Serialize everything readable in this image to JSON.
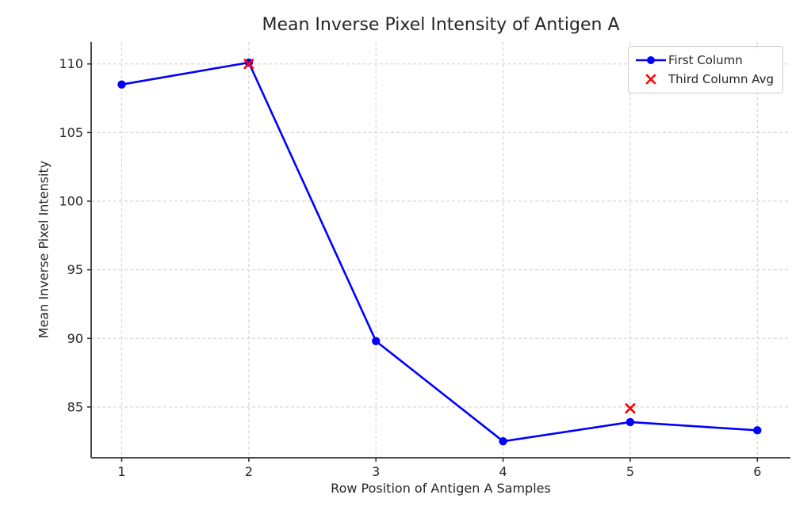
{
  "chart_data": {
    "type": "line",
    "title": "Mean Inverse Pixel Intensity of Antigen A",
    "xlabel": "Row Position of Antigen A Samples",
    "ylabel": "Mean Inverse Pixel Intensity",
    "xticks": [
      1,
      2,
      3,
      4,
      5,
      6
    ],
    "yticks": [
      85,
      90,
      95,
      100,
      105,
      110
    ],
    "xlim": [
      0.76,
      6.26
    ],
    "ylim": [
      81.3,
      111.6
    ],
    "grid": true,
    "grid_color": "#d7d7d7",
    "axis_color": "#333333",
    "text_color": "#262626",
    "legend_position": "upper right",
    "series": [
      {
        "name": "First Column",
        "type": "line",
        "marker": "circle",
        "color": "#0000ff",
        "x": [
          1,
          2,
          3,
          4,
          5,
          6
        ],
        "values": [
          108.5,
          110.1,
          89.8,
          82.5,
          83.9,
          83.3
        ]
      },
      {
        "name": "Third Column Avg",
        "type": "scatter",
        "marker": "x",
        "color": "#ff0000",
        "x": [
          2,
          5
        ],
        "values": [
          110.0,
          84.9
        ]
      }
    ]
  }
}
